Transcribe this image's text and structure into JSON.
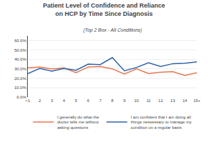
{
  "chart_data": {
    "type": "line",
    "title": "Patient Level of Confidence and Reliance\non HCP by Time Since Diagnosis",
    "subtitle": "(Top 2 Box - All Conditions)",
    "categories": [
      "<1",
      "2",
      "3",
      "4",
      "5",
      "6",
      "7",
      "8",
      "9",
      "10",
      "11",
      "12",
      "13",
      "14",
      "15+"
    ],
    "series": [
      {
        "name": "I generally do what the\ndoctor tells me without\nasking questions",
        "color": "#e8734a",
        "values": [
          31.0,
          32.0,
          30.0,
          31.0,
          26.0,
          32.0,
          32.5,
          30.0,
          24.5,
          30.0,
          25.0,
          26.5,
          27.0,
          23.0,
          26.0
        ]
      },
      {
        "name": "I am confident that I am doing all\nthings nessessary to manage my\ncondition on a regular basis",
        "color": "#2b5ea7",
        "values": [
          25.0,
          30.5,
          27.5,
          30.5,
          28.5,
          35.0,
          34.5,
          42.0,
          28.0,
          31.5,
          36.5,
          32.5,
          35.5,
          36.0,
          37.5
        ]
      }
    ],
    "ylim": [
      0,
      65
    ],
    "yticks": [
      {
        "value": 0,
        "label": "0.0%"
      },
      {
        "value": 10,
        "label": "10.0%"
      },
      {
        "value": 20,
        "label": "20.0%"
      },
      {
        "value": 30,
        "label": "30.0%"
      },
      {
        "value": 40,
        "label": "40.0%"
      },
      {
        "value": 50,
        "label": "50.0%"
      },
      {
        "value": 60,
        "label": "60.0%"
      }
    ],
    "grid": true,
    "legend": "bottom"
  }
}
